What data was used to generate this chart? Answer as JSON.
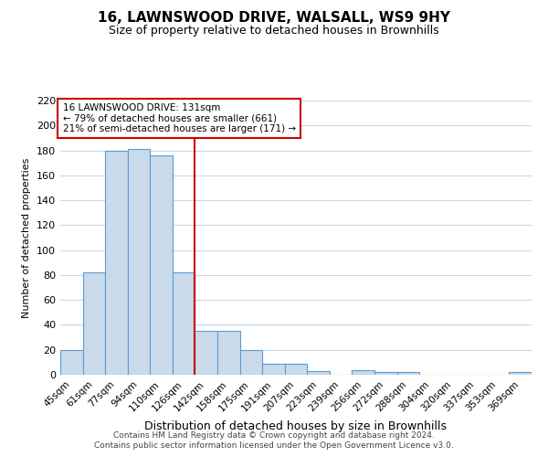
{
  "title": "16, LAWNSWOOD DRIVE, WALSALL, WS9 9HY",
  "subtitle": "Size of property relative to detached houses in Brownhills",
  "xlabel": "Distribution of detached houses by size in Brownhills",
  "ylabel": "Number of detached properties",
  "categories": [
    "45sqm",
    "61sqm",
    "77sqm",
    "94sqm",
    "110sqm",
    "126sqm",
    "142sqm",
    "158sqm",
    "175sqm",
    "191sqm",
    "207sqm",
    "223sqm",
    "239sqm",
    "256sqm",
    "272sqm",
    "288sqm",
    "304sqm",
    "320sqm",
    "337sqm",
    "353sqm",
    "369sqm"
  ],
  "values": [
    20,
    82,
    180,
    181,
    176,
    82,
    35,
    35,
    20,
    9,
    9,
    3,
    0,
    4,
    2,
    2,
    0,
    0,
    0,
    0,
    2
  ],
  "bar_color": "#c9daea",
  "bar_edge_color": "#5b9bd5",
  "vline_x": 5.5,
  "vline_color": "#cc0000",
  "annotation_text": "16 LAWNSWOOD DRIVE: 131sqm\n← 79% of detached houses are smaller (661)\n21% of semi-detached houses are larger (171) →",
  "annotation_box_color": "#ffffff",
  "annotation_box_edge_color": "#cc0000",
  "ylim": [
    0,
    220
  ],
  "yticks": [
    0,
    20,
    40,
    60,
    80,
    100,
    120,
    140,
    160,
    180,
    200,
    220
  ],
  "footer_line1": "Contains HM Land Registry data © Crown copyright and database right 2024.",
  "footer_line2": "Contains public sector information licensed under the Open Government Licence v3.0.",
  "bg_color": "#ffffff",
  "grid_color": "#c8d8e8",
  "title_fontsize": 11,
  "subtitle_fontsize": 9
}
